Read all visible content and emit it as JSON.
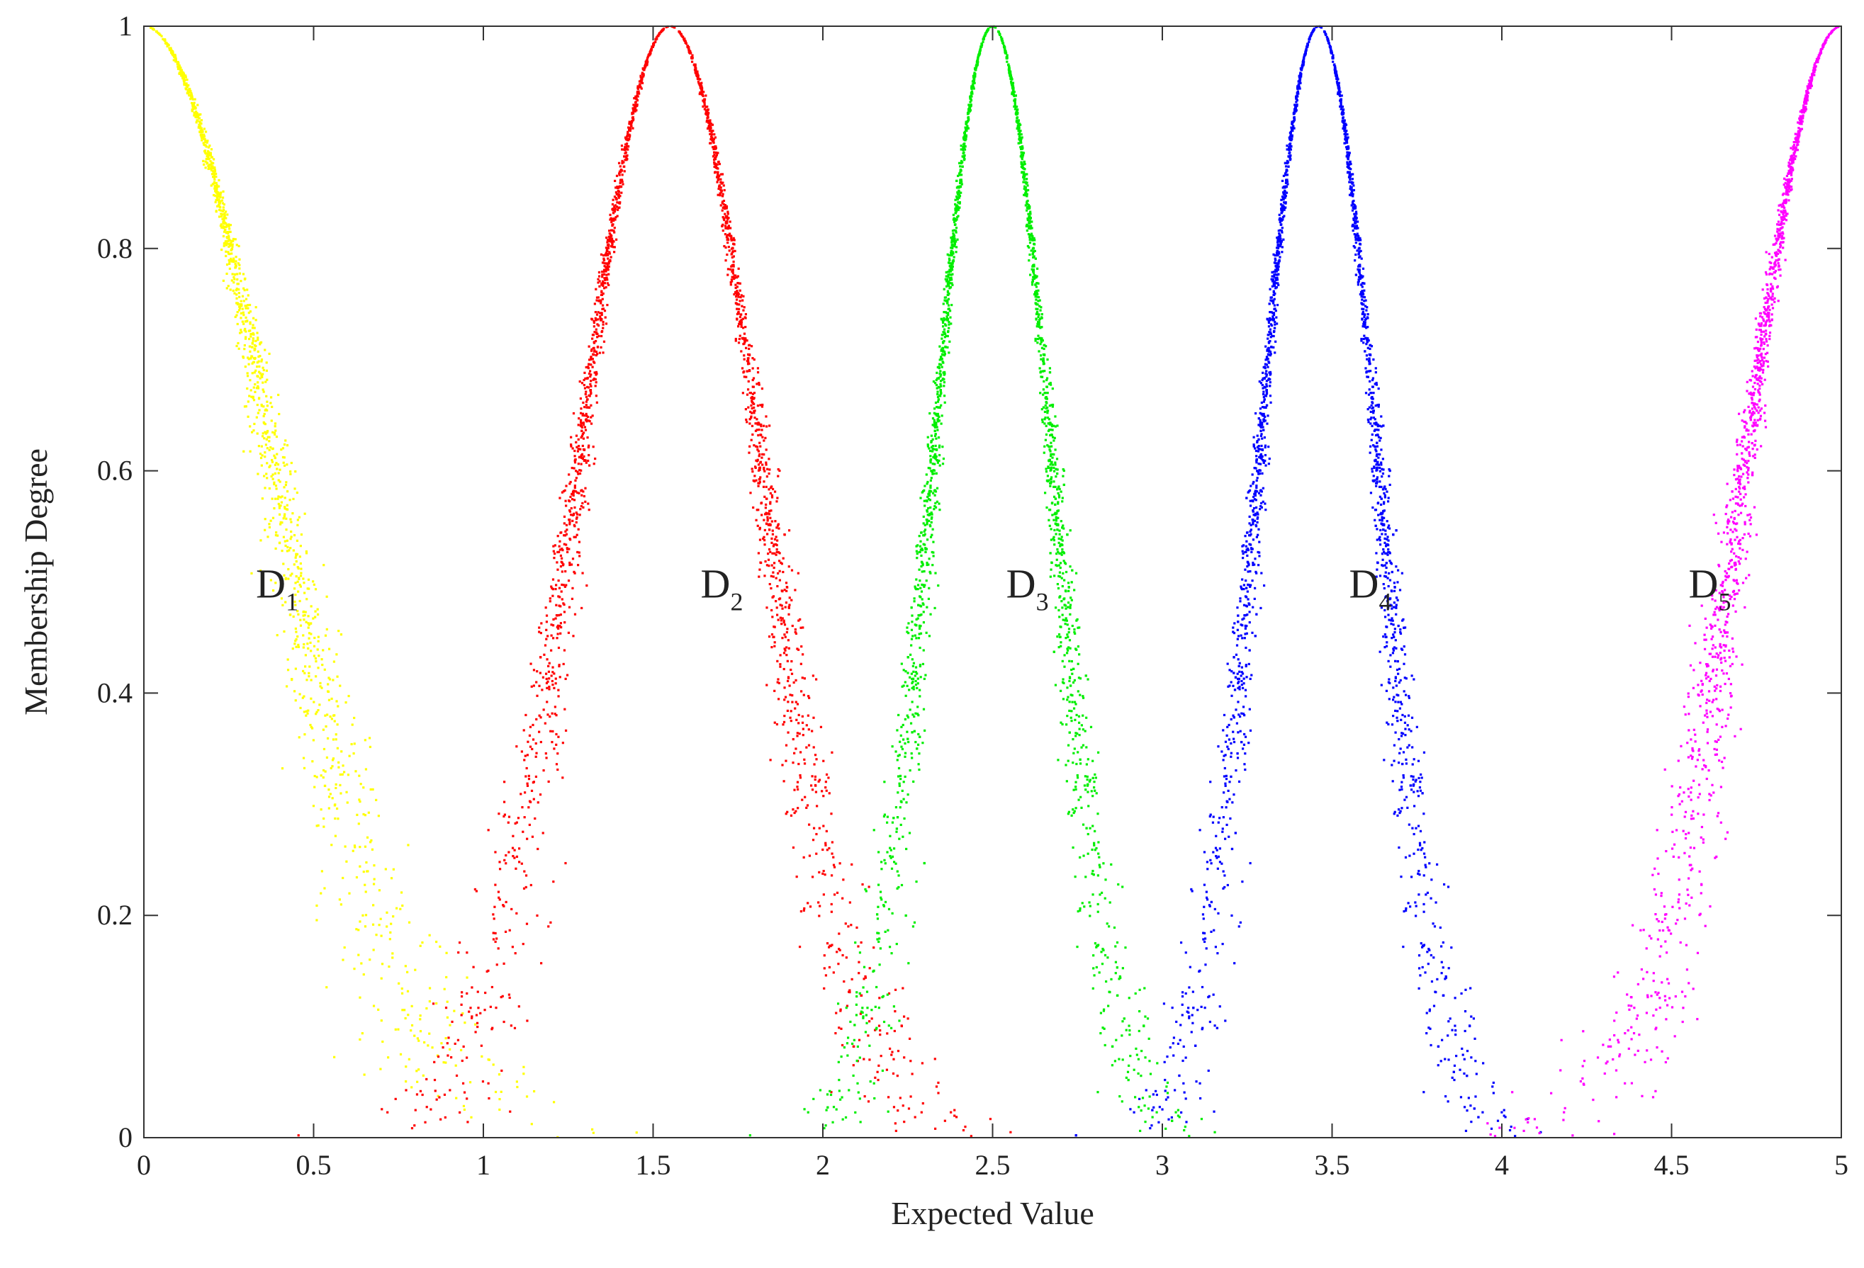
{
  "chart_data": {
    "type": "scatter",
    "title": "",
    "xlabel": "Expected Value",
    "ylabel": "Membership Degree",
    "xlim": [
      0,
      5
    ],
    "ylim": [
      0,
      1
    ],
    "grid": false,
    "xticks": [
      {
        "value": 0,
        "label": "0"
      },
      {
        "value": 0.5,
        "label": "0.5"
      },
      {
        "value": 1,
        "label": "1"
      },
      {
        "value": 1.5,
        "label": "1.5"
      },
      {
        "value": 2,
        "label": "2"
      },
      {
        "value": 2.5,
        "label": "2.5"
      },
      {
        "value": 3,
        "label": "3"
      },
      {
        "value": 3.5,
        "label": "3.5"
      },
      {
        "value": 4,
        "label": "4"
      },
      {
        "value": 4.5,
        "label": "4.5"
      },
      {
        "value": 5,
        "label": "5"
      }
    ],
    "yticks": [
      {
        "value": 0,
        "label": "0"
      },
      {
        "value": 0.2,
        "label": "0.2"
      },
      {
        "value": 0.4,
        "label": "0.4"
      },
      {
        "value": 0.6,
        "label": "0.6"
      },
      {
        "value": 0.8,
        "label": "0.8"
      },
      {
        "value": 1,
        "label": "1"
      }
    ],
    "series": [
      {
        "name": "D1",
        "label_main": "D",
        "label_sub": "1",
        "color": "#ffff00",
        "center": 0.0,
        "spread": 1.35,
        "curve": "gaussian-like",
        "n_points": 1300,
        "label_pos": [
          0.33,
          0.5
        ]
      },
      {
        "name": "D2",
        "label_main": "D",
        "label_sub": "2",
        "color": "#ff0000",
        "center": 1.55,
        "spread": 0.95,
        "curve": "gaussian-like",
        "n_points": 2200,
        "label_pos": [
          1.64,
          0.5
        ]
      },
      {
        "name": "D3",
        "label_main": "D",
        "label_sub": "3",
        "color": "#00ee00",
        "center": 2.5,
        "spread": 0.62,
        "curve": "gaussian-like",
        "n_points": 2200,
        "label_pos": [
          2.54,
          0.5
        ]
      },
      {
        "name": "D4",
        "label_main": "D",
        "label_sub": "4",
        "color": "#0000ff",
        "center": 3.46,
        "spread": 0.62,
        "curve": "gaussian-like",
        "n_points": 2200,
        "label_pos": [
          3.55,
          0.5
        ]
      },
      {
        "name": "D5",
        "label_main": "D",
        "label_sub": "5",
        "color": "#ff00ff",
        "center": 5.0,
        "spread": 1.0,
        "curve": "gaussian-like",
        "n_points": 1400,
        "label_pos": [
          4.55,
          0.5
        ]
      }
    ]
  }
}
